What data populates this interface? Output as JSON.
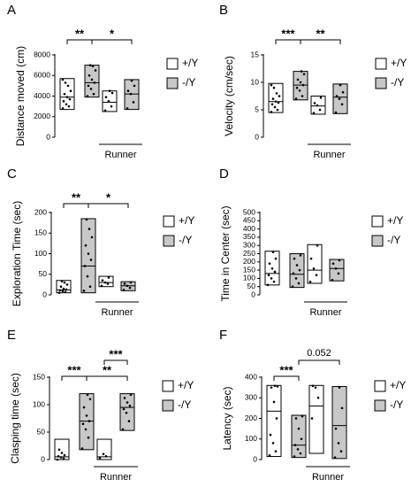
{
  "chart_data": [
    {
      "type": "box",
      "panel_label": "A",
      "ylabel": "Distance moved (cm)",
      "yticks": [
        0,
        2000,
        4000,
        6000,
        8000
      ],
      "ylim": [
        0,
        8000
      ],
      "groups": [
        {
          "genotype": "+/Y",
          "q1": 2700,
          "median": 3900,
          "q3": 5700,
          "points": [
            2800,
            3000,
            3200,
            3500,
            3700,
            3900,
            4200,
            4500,
            5000,
            5300,
            5600
          ]
        },
        {
          "genotype": "-/Y",
          "q1": 3900,
          "median": 5300,
          "q3": 7000,
          "points": [
            4000,
            4200,
            4700,
            5000,
            5300,
            5600,
            6000,
            6500,
            6900,
            7000
          ]
        },
        {
          "genotype": "+/Y",
          "q1": 2500,
          "median": 3400,
          "q3": 4500,
          "points": [
            2600,
            3000,
            3500,
            3900,
            4300,
            4500
          ]
        },
        {
          "genotype": "-/Y",
          "q1": 2700,
          "median": 4200,
          "q3": 5600,
          "points": [
            2800,
            3400,
            4200,
            4500,
            5000,
            5500
          ]
        }
      ],
      "brackets": [
        {
          "from": 0,
          "to": 1,
          "label": "**"
        },
        {
          "from": 1,
          "to": 3,
          "label": "*"
        }
      ],
      "runner_label": "Runner",
      "legend": [
        {
          "label": "+/Y",
          "fill": "#ffffff"
        },
        {
          "label": "-/Y",
          "fill": "#c8c8c8"
        }
      ]
    },
    {
      "type": "box",
      "panel_label": "B",
      "ylabel": "Velocity (cm/sec)",
      "yticks": [
        0,
        5,
        10,
        15
      ],
      "ylim": [
        0,
        15
      ],
      "groups": [
        {
          "genotype": "+/Y",
          "q1": 4.5,
          "median": 6.5,
          "q3": 9.8,
          "points": [
            4.6,
            5.0,
            5.5,
            6.0,
            6.3,
            6.5,
            7.0,
            7.5,
            8.0,
            9.0,
            9.5
          ]
        },
        {
          "genotype": "-/Y",
          "q1": 6.8,
          "median": 9.5,
          "q3": 12.0,
          "points": [
            7.0,
            7.5,
            8.5,
            9.0,
            9.5,
            10.0,
            10.5,
            11.5,
            12.0
          ]
        },
        {
          "genotype": "+/Y",
          "q1": 4.2,
          "median": 5.7,
          "q3": 7.5,
          "points": [
            4.4,
            5.0,
            5.8,
            6.2,
            7.2
          ]
        },
        {
          "genotype": "-/Y",
          "q1": 4.3,
          "median": 7.3,
          "q3": 9.7,
          "points": [
            4.5,
            6.0,
            7.0,
            7.5,
            8.2,
            9.5
          ]
        }
      ],
      "brackets": [
        {
          "from": 0,
          "to": 1,
          "label": "***"
        },
        {
          "from": 1,
          "to": 3,
          "label": "**"
        }
      ],
      "runner_label": "Runner",
      "legend": [
        {
          "label": "+/Y",
          "fill": "#ffffff"
        },
        {
          "label": "-/Y",
          "fill": "#c8c8c8"
        }
      ]
    },
    {
      "type": "box",
      "panel_label": "C",
      "ylabel": "Exploration Time (sec)",
      "yticks": [
        0,
        50,
        100,
        150,
        200
      ],
      "ylim": [
        0,
        200
      ],
      "groups": [
        {
          "genotype": "+/Y",
          "q1": 5,
          "median": 12,
          "q3": 35,
          "points": [
            5,
            7,
            9,
            11,
            13,
            15,
            20,
            25,
            30,
            33
          ]
        },
        {
          "genotype": "-/Y",
          "q1": 5,
          "median": 70,
          "q3": 185,
          "points": [
            10,
            20,
            45,
            70,
            85,
            100,
            120,
            140,
            160,
            183
          ]
        },
        {
          "genotype": "+/Y",
          "q1": 20,
          "median": 30,
          "q3": 45,
          "points": [
            22,
            27,
            30,
            35,
            42
          ]
        },
        {
          "genotype": "-/Y",
          "q1": 10,
          "median": 22,
          "q3": 32,
          "points": [
            12,
            17,
            22,
            27,
            30
          ]
        }
      ],
      "brackets": [
        {
          "from": 0,
          "to": 1,
          "label": "**"
        },
        {
          "from": 1,
          "to": 3,
          "label": "*"
        }
      ],
      "runner_label": "Runner",
      "legend": [
        {
          "label": "+/Y",
          "fill": "#ffffff"
        },
        {
          "label": "-/Y",
          "fill": "#c8c8c8"
        }
      ]
    },
    {
      "type": "box",
      "panel_label": "D",
      "ylabel": "Time in Center (sec)",
      "yticks": [
        0,
        50,
        100,
        150,
        200,
        250,
        300,
        350,
        400,
        450,
        500
      ],
      "ylim": [
        0,
        500
      ],
      "groups": [
        {
          "genotype": "+/Y",
          "q1": 60,
          "median": 130,
          "q3": 265,
          "points": [
            60,
            80,
            100,
            120,
            140,
            160,
            190,
            220,
            260
          ]
        },
        {
          "genotype": "-/Y",
          "q1": 45,
          "median": 125,
          "q3": 250,
          "points": [
            50,
            70,
            100,
            130,
            150,
            180,
            220,
            240
          ]
        },
        {
          "genotype": "+/Y",
          "q1": 70,
          "median": 150,
          "q3": 305,
          "points": [
            80,
            120,
            160,
            220,
            300
          ]
        },
        {
          "genotype": "-/Y",
          "q1": 85,
          "median": 160,
          "q3": 215,
          "points": [
            90,
            130,
            160,
            190,
            210
          ]
        }
      ],
      "brackets": [],
      "runner_label": "Runner",
      "legend": [
        {
          "label": "+/Y",
          "fill": "#ffffff"
        },
        {
          "label": "-/Y",
          "fill": "#c8c8c8"
        }
      ]
    },
    {
      "type": "box",
      "panel_label": "E",
      "ylabel": "Clasping time (sec)",
      "yticks": [
        0,
        50,
        100,
        150
      ],
      "ylim": [
        0,
        150
      ],
      "groups": [
        {
          "genotype": "+/Y",
          "q1": 0,
          "median": 5,
          "q3": 37,
          "points": [
            0,
            2,
            4,
            6,
            8,
            12,
            18
          ]
        },
        {
          "genotype": "-/Y",
          "q1": 18,
          "median": 70,
          "q3": 120,
          "points": [
            20,
            40,
            55,
            65,
            70,
            80,
            95,
            110,
            118
          ]
        },
        {
          "genotype": "+/Y",
          "q1": 0,
          "median": 5,
          "q3": 37,
          "points": [
            3,
            6,
            10
          ]
        },
        {
          "genotype": "-/Y",
          "q1": 53,
          "median": 95,
          "q3": 120,
          "points": [
            55,
            70,
            85,
            92,
            98,
            104,
            112,
            118
          ]
        }
      ],
      "brackets": [
        {
          "from": 0,
          "to": 1,
          "label": "***"
        },
        {
          "from": 2,
          "to": 3,
          "label": "***"
        },
        {
          "from": 1,
          "to": 3,
          "label": "**"
        }
      ],
      "runner_label": "Runner",
      "legend": [
        {
          "label": "+/Y",
          "fill": "#ffffff"
        },
        {
          "label": "-/Y",
          "fill": "#c8c8c8"
        }
      ]
    },
    {
      "type": "box",
      "panel_label": "F",
      "ylabel": "Latency (sec)",
      "yticks": [
        0,
        100,
        200,
        300,
        400
      ],
      "ylim": [
        0,
        400
      ],
      "groups": [
        {
          "genotype": "+/Y",
          "q1": 15,
          "median": 235,
          "q3": 360,
          "points": [
            20,
            40,
            80,
            120,
            200,
            280,
            350,
            355,
            358
          ]
        },
        {
          "genotype": "-/Y",
          "q1": 10,
          "median": 70,
          "q3": 215,
          "points": [
            15,
            30,
            50,
            70,
            100,
            150,
            200,
            210
          ]
        },
        {
          "genotype": "+/Y",
          "q1": 30,
          "median": 260,
          "q3": 360,
          "points": [
            200,
            300,
            350,
            358
          ]
        },
        {
          "genotype": "-/Y",
          "q1": 5,
          "median": 165,
          "q3": 355,
          "points": [
            10,
            40,
            80,
            150,
            250,
            350
          ]
        }
      ],
      "brackets": [
        {
          "from": 0,
          "to": 1,
          "label": "***"
        },
        {
          "from": 1,
          "to": 3,
          "label": "0.052"
        }
      ],
      "runner_label": "Runner",
      "legend": [
        {
          "label": "+/Y",
          "fill": "#ffffff"
        },
        {
          "label": "-/Y",
          "fill": "#c8c8c8"
        }
      ]
    }
  ]
}
